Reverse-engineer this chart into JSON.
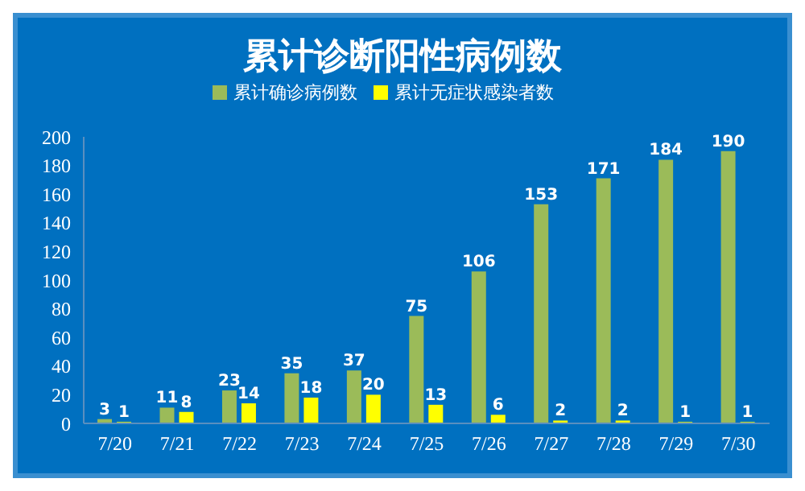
{
  "chart_data": {
    "type": "bar",
    "title": "累计诊断阳性病例数",
    "categories": [
      "7/20",
      "7/21",
      "7/22",
      "7/23",
      "7/24",
      "7/25",
      "7/26",
      "7/27",
      "7/28",
      "7/29",
      "7/30"
    ],
    "series": [
      {
        "name": "累计确诊病例数",
        "color": "#9bbb59",
        "values": [
          3,
          11,
          23,
          35,
          37,
          75,
          106,
          153,
          171,
          184,
          190
        ]
      },
      {
        "name": "累计无症状感染者数",
        "color": "#ffff00",
        "values": [
          1,
          8,
          14,
          18,
          20,
          13,
          6,
          2,
          2,
          1,
          1
        ]
      }
    ],
    "ylim": [
      0,
      200
    ],
    "yticks": [
      0,
      20,
      40,
      60,
      80,
      100,
      120,
      140,
      160,
      180,
      200
    ],
    "grid": false,
    "legend": "top",
    "data_labels": true
  }
}
